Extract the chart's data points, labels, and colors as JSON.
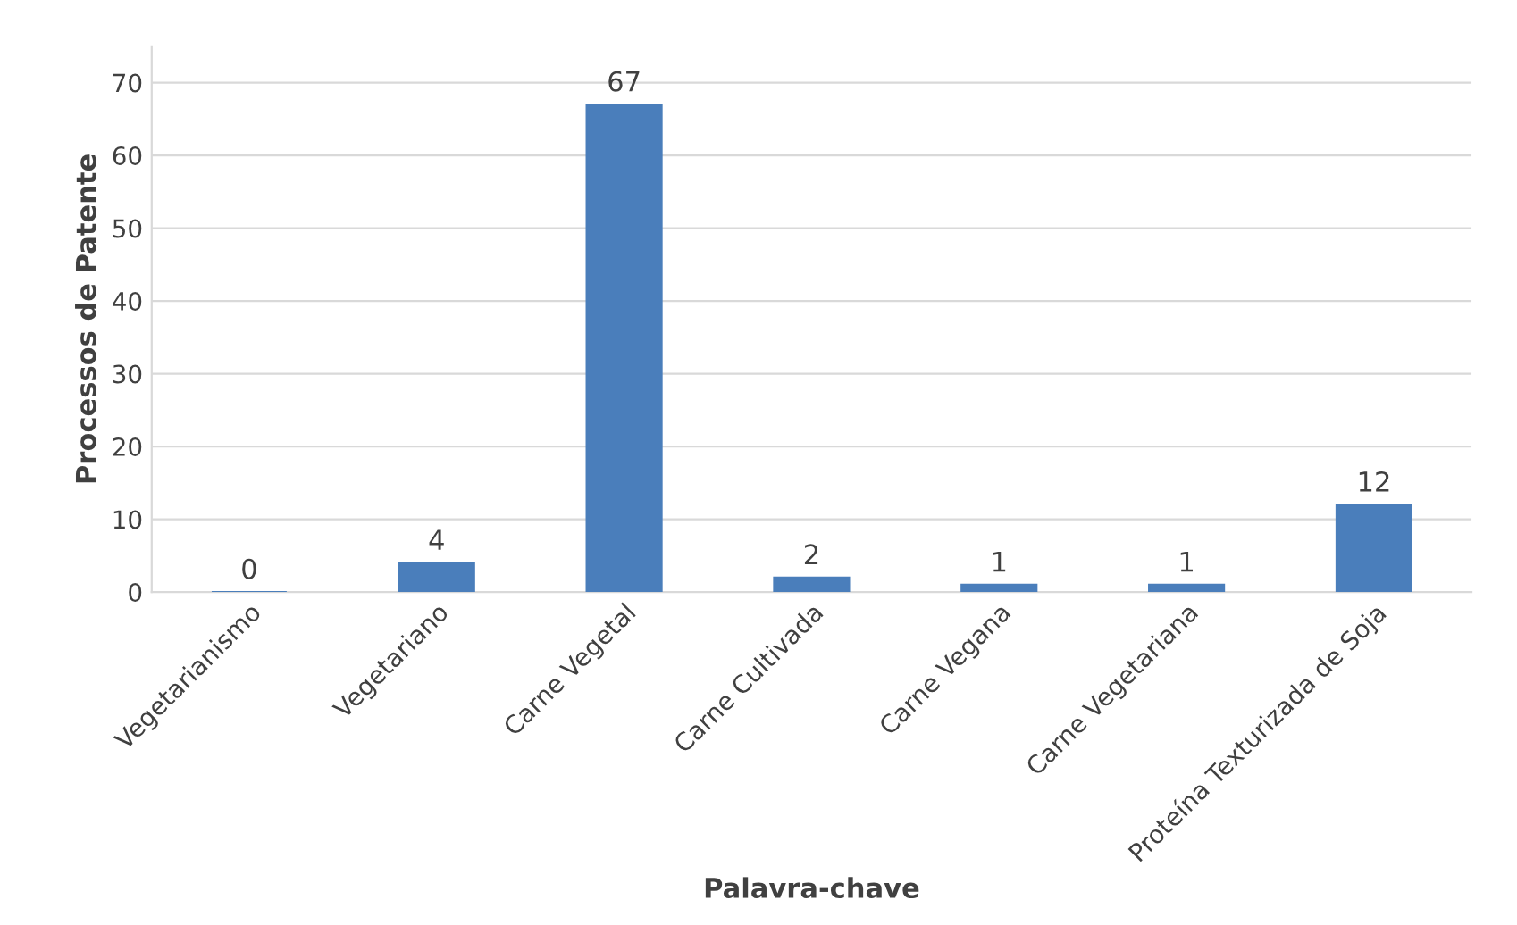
{
  "chart_data": {
    "type": "bar",
    "categories": [
      "Vegetarianismo",
      "Vegetariano",
      "Carne Vegetal",
      "Carne Cultivada",
      "Carne Vegana",
      "Carne Vegetariana",
      "Proteína Texturizada de Soja"
    ],
    "values": [
      0,
      4,
      67,
      2,
      1,
      1,
      12
    ],
    "color": "#4a7ebb",
    "xlabel": "Palavra-chave",
    "ylabel": "Processos de Patente",
    "ylim": [
      0,
      75
    ],
    "yticks": [
      0,
      10,
      20,
      30,
      40,
      50,
      60,
      70
    ],
    "grid": "y",
    "data_labels": true,
    "legend": false
  }
}
